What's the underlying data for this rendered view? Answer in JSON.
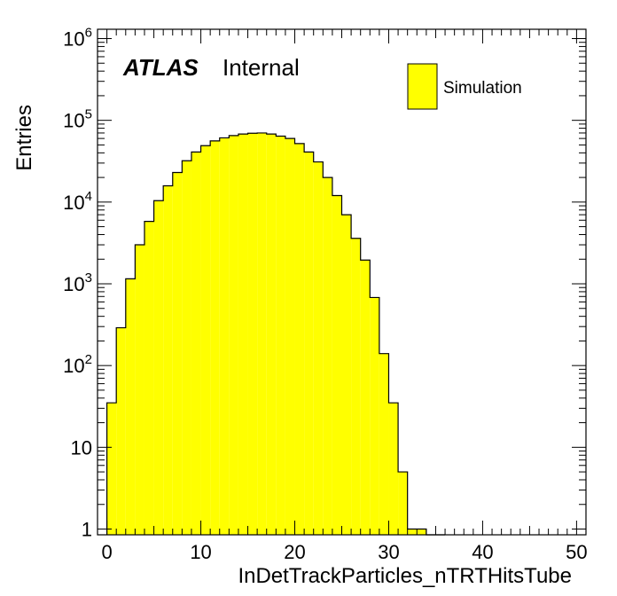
{
  "chart_data": {
    "type": "histogram",
    "xlabel": "InDetTrackParticles_nTRTHitsTube",
    "ylabel": "Entries",
    "xlim": [
      -1,
      51
    ],
    "ylim": [
      0.85,
      1300000
    ],
    "yscale": "log",
    "bin_width": 1,
    "bin_edges_start": 0,
    "bin_edges_end": 36,
    "values": [
      35,
      290,
      1150,
      3000,
      5800,
      10400,
      15800,
      23000,
      32000,
      41000,
      49000,
      56000,
      61000,
      65000,
      68000,
      69500,
      70000,
      68000,
      64000,
      60000,
      52000,
      41000,
      31000,
      20000,
      12000,
      7000,
      3600,
      1950,
      680,
      140,
      35,
      5,
      1,
      1,
      0,
      0
    ],
    "series": [
      {
        "name": "Simulation",
        "color": "#ffff00"
      }
    ],
    "x_tick_labels": [
      "0",
      "10",
      "20",
      "30",
      "40",
      "50"
    ],
    "x_tick_values": [
      0,
      10,
      20,
      30,
      40,
      50
    ],
    "y_tick_labels": [
      {
        "base": "1",
        "exp": ""
      },
      {
        "base": "10",
        "exp": ""
      },
      {
        "base": "10",
        "exp": "2"
      },
      {
        "base": "10",
        "exp": "3"
      },
      {
        "base": "10",
        "exp": "4"
      },
      {
        "base": "10",
        "exp": "5"
      },
      {
        "base": "10",
        "exp": "6"
      }
    ],
    "y_tick_values": [
      1,
      10,
      100,
      1000,
      10000,
      100000,
      1000000
    ],
    "grid": false,
    "legend_position": "top-right"
  },
  "labels": {
    "atlas_bold": "ATLAS",
    "atlas_plain": "Internal",
    "legend_entry": "Simulation"
  },
  "colors": {
    "fill": "#ffff00",
    "line": "#000000"
  }
}
